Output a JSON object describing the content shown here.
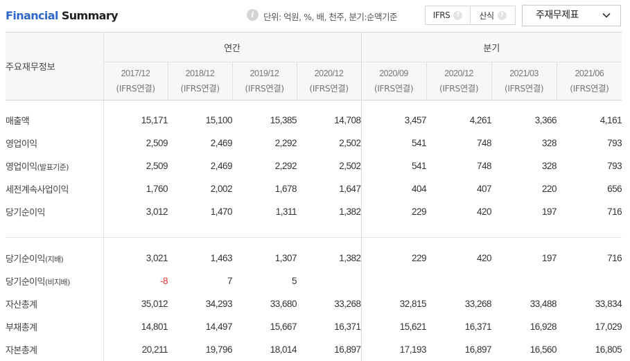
{
  "header": {
    "title_part1": "Financial",
    "title_part2": "Summary",
    "info_icon": "info-icon",
    "unit_text": "단위: 억원, %, 배, 천주, 분기:순액기준",
    "toggle": [
      {
        "label": "IFRS",
        "help": "?"
      },
      {
        "label": "산식",
        "help": "?"
      }
    ],
    "select_value": "주재무제표",
    "select_icon": "chevron-down-icon"
  },
  "table": {
    "row_header_label": "주요재무정보",
    "groups": [
      {
        "label": "연간",
        "span": 4
      },
      {
        "label": "분기",
        "span": 4
      }
    ],
    "columns": [
      {
        "period": "2017/12",
        "basis": "(IFRS연결)"
      },
      {
        "period": "2018/12",
        "basis": "(IFRS연결)"
      },
      {
        "period": "2019/12",
        "basis": "(IFRS연결)"
      },
      {
        "period": "2020/12",
        "basis": "(IFRS연결)"
      },
      {
        "period": "2020/09",
        "basis": "(IFRS연결)"
      },
      {
        "period": "2020/12",
        "basis": "(IFRS연결)"
      },
      {
        "period": "2021/03",
        "basis": "(IFRS연결)"
      },
      {
        "period": "2021/06",
        "basis": "(IFRS연결)"
      }
    ],
    "section1": [
      {
        "label": "매출액",
        "suffix": "",
        "values": [
          "15,171",
          "15,100",
          "15,385",
          "14,708",
          "3,457",
          "4,261",
          "3,366",
          "4,161"
        ]
      },
      {
        "label": "영업이익",
        "suffix": "",
        "values": [
          "2,509",
          "2,469",
          "2,292",
          "2,502",
          "541",
          "748",
          "328",
          "793"
        ]
      },
      {
        "label": "영업이익",
        "suffix": "(발표기준)",
        "values": [
          "2,509",
          "2,469",
          "2,292",
          "2,502",
          "541",
          "748",
          "328",
          "793"
        ]
      },
      {
        "label": "세전계속사업이익",
        "suffix": "",
        "values": [
          "1,760",
          "2,002",
          "1,678",
          "1,647",
          "404",
          "407",
          "220",
          "656"
        ]
      },
      {
        "label": "당기순이익",
        "suffix": "",
        "values": [
          "3,012",
          "1,470",
          "1,311",
          "1,382",
          "229",
          "420",
          "197",
          "716"
        ]
      }
    ],
    "section2": [
      {
        "label": "당기순이익",
        "suffix": "(지배)",
        "values": [
          "3,021",
          "1,463",
          "1,307",
          "1,382",
          "229",
          "420",
          "197",
          "716"
        ]
      },
      {
        "label": "당기순이익",
        "suffix": "(비지배)",
        "values": [
          "-8",
          "7",
          "5",
          "",
          "",
          "",
          "",
          ""
        ]
      },
      {
        "label": "자산총계",
        "suffix": "",
        "values": [
          "35,012",
          "34,293",
          "33,680",
          "33,268",
          "32,815",
          "33,268",
          "33,488",
          "33,834"
        ]
      },
      {
        "label": "부채총계",
        "suffix": "",
        "values": [
          "14,801",
          "14,497",
          "15,667",
          "16,371",
          "15,621",
          "16,371",
          "16,928",
          "17,029"
        ]
      },
      {
        "label": "자본총계",
        "suffix": "",
        "values": [
          "20,211",
          "19,796",
          "18,014",
          "16,897",
          "17,193",
          "16,897",
          "16,560",
          "16,805"
        ]
      }
    ],
    "colors": {
      "negative": "#e03030",
      "title_accent": "#2f67c9"
    }
  }
}
